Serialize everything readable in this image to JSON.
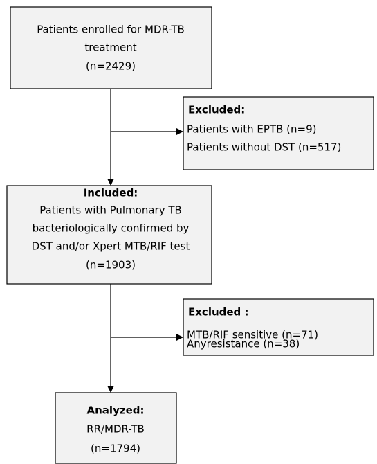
{
  "nodes": [
    {
      "lines": [
        "Patients  enrolled for MDR-TB",
        "treatment",
        "(n=2429)"
      ]
    },
    {
      "title": "Excluded:",
      "lines": [
        "Patients with EPTB (n=9)",
        "Patients  without DST (n=517)"
      ]
    },
    {
      "title": "Included:",
      "lines": [
        "Patients with  Pulmonary TB",
        "bacteriologically confirmed by",
        "DST and/or  Xpert MTB/RIF test",
        "(n=1903)"
      ]
    },
    {
      "title": "Excluded :",
      "lines": [
        "MTB/RIF sensitive (n=71)",
        "Anyresistance (n=38)"
      ]
    },
    {
      "title": "Analyzed:",
      "lines": [
        "RR/MDR-TB",
        "(n=1794)"
      ]
    }
  ]
}
